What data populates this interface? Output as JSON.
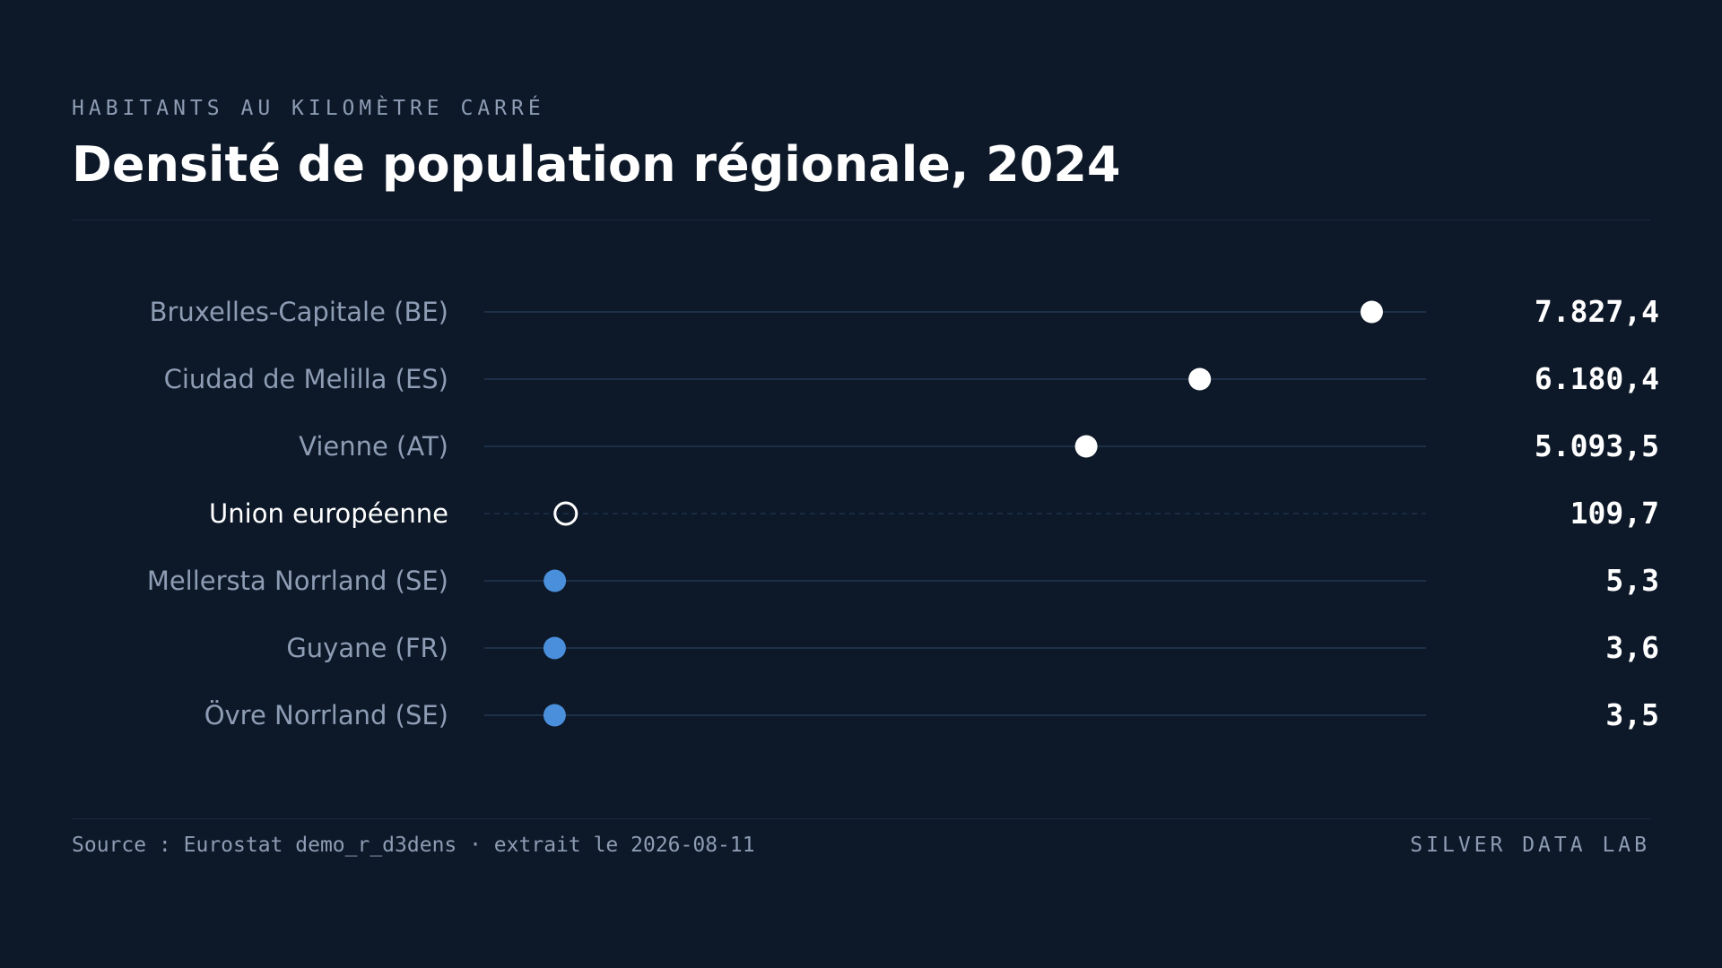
{
  "header": {
    "eyebrow": "HABITANTS AU KILOMÈTRE CARRÉ",
    "title": "Densité de population régionale, 2024"
  },
  "footer": {
    "source": "Source : Eurostat demo_r_d3dens · extrait le 2026-08-11",
    "brand": "SILVER DATA LAB"
  },
  "colors": {
    "background": "#0d1929",
    "high": "#ffffff",
    "low": "#4a8fdb",
    "reference": "#ffffff",
    "track": "#1e3048",
    "label": "#8e9cb4",
    "label_reference": "#ffffff",
    "value": "#ffffff"
  },
  "chart_data": {
    "type": "dot",
    "title": "Densité de population régionale, 2024",
    "subtitle": "HABITANTS AU KILOMÈTRE CARRÉ",
    "xlim": [
      0,
      9000
    ],
    "grid": false,
    "rows": [
      {
        "label": "Bruxelles-Capitale (BE)",
        "value": 7827.4,
        "value_label": "7.827,4",
        "group": "high"
      },
      {
        "label": "Ciudad de Melilla (ES)",
        "value": 6180.4,
        "value_label": "6.180,4",
        "group": "high"
      },
      {
        "label": "Vienne (AT)",
        "value": 5093.5,
        "value_label": "5.093,5",
        "group": "high"
      },
      {
        "label": "Union européenne",
        "value": 109.7,
        "value_label": "109,7",
        "group": "reference"
      },
      {
        "label": "Mellersta Norrland (SE)",
        "value": 5.3,
        "value_label": "5,3",
        "group": "low"
      },
      {
        "label": "Guyane (FR)",
        "value": 3.6,
        "value_label": "3,6",
        "group": "low"
      },
      {
        "label": "Övre Norrland (SE)",
        "value": 3.5,
        "value_label": "3,5",
        "group": "low"
      }
    ]
  }
}
